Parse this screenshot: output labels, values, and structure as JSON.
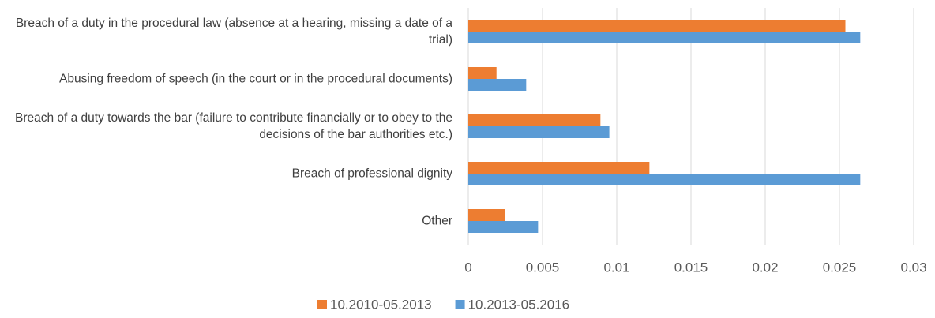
{
  "chart_data": {
    "type": "bar",
    "orientation": "horizontal",
    "categories": [
      "Breach of a duty in the procedural law (absence at a hearing, missing a date of a trial)",
      "Abusing freedom of speech (in the court or in the procedural documents)",
      "Breach of a duty towards the bar (failure to contribute financially or to obey to the decisions of the bar authorities etc.)",
      "Breach of professional dignity",
      "Other"
    ],
    "series": [
      {
        "name": "10.2010-05.2013",
        "color": "#ed7d31",
        "values": [
          0.0254,
          0.0019,
          0.0089,
          0.0122,
          0.0025
        ]
      },
      {
        "name": "10.2013-05.2016",
        "color": "#5b9bd5",
        "values": [
          0.0264,
          0.0039,
          0.0095,
          0.0264,
          0.0047
        ]
      }
    ],
    "xlim": [
      0,
      0.03
    ],
    "xticks": [
      0,
      0.005,
      0.01,
      0.015,
      0.02,
      0.025,
      0.03
    ],
    "grid": true,
    "legend": "bottom"
  }
}
